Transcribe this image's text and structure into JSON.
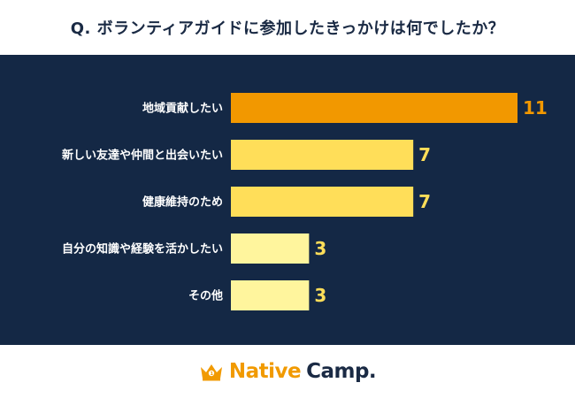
{
  "header": {
    "question": "Q. ボランティアガイドに参加したきっかけは何でしたか？"
  },
  "footer": {
    "brand_native": "Native",
    "brand_camp": "Camp.",
    "logo_icon": "crown-icon"
  },
  "colors": {
    "panel_bg": "#142845",
    "bar_highlight": "#f29800",
    "bar_mid": "#ffde59",
    "bar_light": "#fff59d",
    "value_highlight": "#f29800",
    "value_default": "#ffde59",
    "label_text": "#ffffff"
  },
  "chart_data": {
    "type": "bar",
    "orientation": "horizontal",
    "categories": [
      "地域貢献したい",
      "新しい友達や仲間と出会いたい",
      "健康維持のため",
      "自分の知識や経験を活かしたい",
      "その他"
    ],
    "values": [
      11,
      7,
      7,
      3,
      3
    ],
    "data_labels": [
      "11",
      "7",
      "7",
      "3",
      "3"
    ],
    "bar_styles": [
      "highlight",
      "mid",
      "mid",
      "light",
      "light"
    ],
    "title": "",
    "xlabel": "",
    "ylabel": "",
    "xlim": [
      0,
      11
    ],
    "grid": false,
    "legend": "none"
  }
}
